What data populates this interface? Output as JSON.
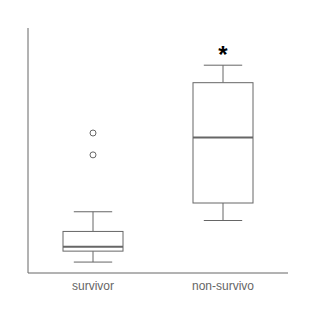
{
  "chart_data": {
    "type": "box",
    "categories": [
      "survivor",
      "non-survivo"
    ],
    "boxes": [
      {
        "median": 0.1,
        "q1": 0.08,
        "q3": 0.17,
        "whisker_low": 0.03,
        "whisker_high": 0.26,
        "outliers": [
          0.62,
          0.52
        ]
      },
      {
        "median": 0.6,
        "q1": 0.3,
        "q3": 0.85,
        "whisker_low": 0.22,
        "whisker_high": 0.93,
        "outliers": []
      }
    ],
    "annotations": [
      {
        "text": "*",
        "category": "non-survivo"
      }
    ],
    "ylim": [
      -0.02,
      1.1
    ],
    "yticks": [],
    "tick_labels": "x",
    "color": "#666666"
  }
}
